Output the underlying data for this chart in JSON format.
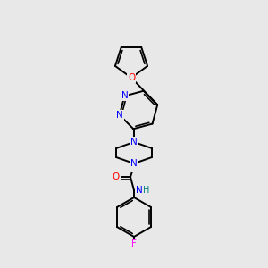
{
  "background_color": "#e8e8e8",
  "bond_color": "#000000",
  "atom_colors": {
    "F": "#ff00ff",
    "N": "#0000ff",
    "O": "#ff0000",
    "H": "#008080",
    "C": "#000000"
  },
  "title": "",
  "figsize": [
    3.0,
    3.0
  ],
  "dpi": 100
}
